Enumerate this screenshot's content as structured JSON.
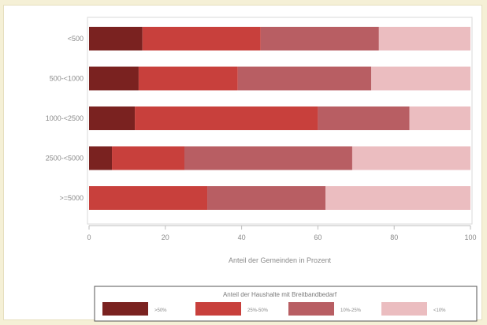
{
  "chart_data": {
    "type": "bar",
    "orientation": "horizontal",
    "stacked": true,
    "categories": [
      "<500",
      "500-<1000",
      "1000-<2500",
      "2500-<5000",
      ">=5000"
    ],
    "series": [
      {
        "name": ">50%",
        "color": "#7a2220",
        "values": [
          14,
          13,
          12,
          6,
          0
        ]
      },
      {
        "name": "25%-50%",
        "color": "#c8403c",
        "values": [
          31,
          26,
          48,
          19,
          31
        ]
      },
      {
        "name": "10%-25%",
        "color": "#b85e63",
        "values": [
          31,
          35,
          24,
          44,
          31
        ]
      },
      {
        "name": "<10%",
        "color": "#ebbdc0",
        "values": [
          24,
          26,
          16,
          31,
          38
        ]
      }
    ],
    "xticks": [
      0,
      20,
      40,
      60,
      80,
      100
    ],
    "xlim": [
      0,
      100
    ],
    "xlabel": "Anteil der Gemeinden in Prozent",
    "legend_title": "Anteil der Haushalte mit Breitbandbedarf",
    "legend_position": "bottom",
    "grid": false
  }
}
